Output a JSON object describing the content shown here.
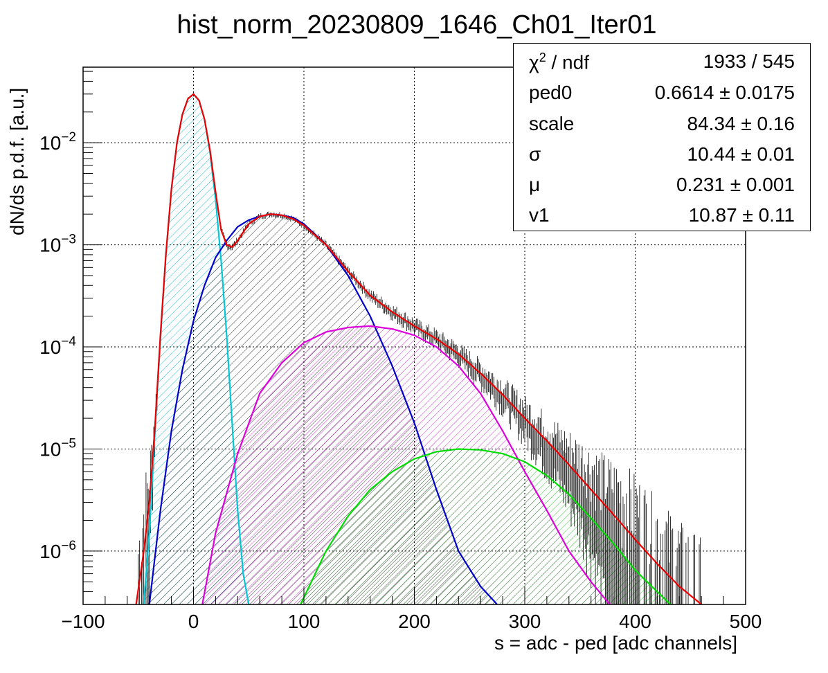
{
  "chart_data": {
    "type": "line",
    "title": "hist_norm_20230809_1646_Ch01_Iter01",
    "xlabel": "s = adc - ped [adc channels]",
    "ylabel": "dN/ds p.d.f. [a.u.]",
    "xlim": [
      -100,
      500
    ],
    "ylim": [
      3e-07,
      0.055
    ],
    "yscale": "log",
    "grid": true,
    "x_ticks": [
      "−100",
      "0",
      "100",
      "200",
      "300",
      "400",
      "500"
    ],
    "x_tick_values": [
      -100,
      0,
      100,
      200,
      300,
      400,
      500
    ],
    "y_ticks": [
      {
        "value": 0.01,
        "base": "10",
        "exp": "−2"
      },
      {
        "value": 0.001,
        "base": "10",
        "exp": "−3"
      },
      {
        "value": 0.0001,
        "base": "10",
        "exp": "−4"
      },
      {
        "value": 1e-05,
        "base": "10",
        "exp": "−5"
      },
      {
        "value": 1e-06,
        "base": "10",
        "exp": "−6"
      }
    ],
    "series": [
      {
        "color": "#00c8d8",
        "hatch": "cyan",
        "x": [
          -45,
          -40,
          -35,
          -30,
          -25,
          -20,
          -15,
          -10,
          -5,
          0,
          5,
          10,
          15,
          20,
          25,
          30,
          35,
          40,
          45,
          50
        ],
        "y": [
          3e-07,
          1.5e-06,
          1.4e-05,
          0.00012,
          0.0008,
          0.0035,
          0.01,
          0.019,
          0.027,
          0.03,
          0.026,
          0.017,
          0.008,
          0.0028,
          0.0007,
          0.00013,
          1.8e-05,
          2.5e-06,
          6e-07,
          3e-07
        ]
      },
      {
        "color": "#0000cc",
        "hatch": "black",
        "x": [
          -40,
          -30,
          -20,
          -10,
          0,
          10,
          20,
          30,
          40,
          50,
          60,
          70,
          80,
          90,
          100,
          120,
          140,
          160,
          180,
          200,
          220,
          240,
          260,
          275
        ],
        "y": [
          3e-07,
          2.5e-06,
          1.5e-05,
          6e-05,
          0.00018,
          0.0004,
          0.00075,
          0.0011,
          0.0015,
          0.00175,
          0.0019,
          0.002,
          0.00195,
          0.00185,
          0.0016,
          0.001,
          0.0005,
          0.0002,
          6.5e-05,
          1.8e-05,
          4e-06,
          1e-06,
          4.5e-07,
          3e-07
        ]
      },
      {
        "color": "#dd00dd",
        "hatch": "magenta",
        "x": [
          8,
          20,
          40,
          60,
          80,
          100,
          120,
          140,
          160,
          180,
          200,
          220,
          240,
          260,
          280,
          300,
          320,
          340,
          360,
          377
        ],
        "y": [
          3e-07,
          1.5e-06,
          9e-06,
          3.5e-05,
          7e-05,
          0.00011,
          0.00014,
          0.000155,
          0.00016,
          0.00015,
          0.00013,
          0.0001,
          6.5e-05,
          3.5e-05,
          1.5e-05,
          6e-06,
          2.5e-06,
          1e-06,
          5e-07,
          3e-07
        ]
      },
      {
        "color": "#00dd00",
        "hatch": "green",
        "x": [
          97,
          120,
          140,
          160,
          180,
          200,
          220,
          240,
          260,
          280,
          300,
          320,
          340,
          360,
          380,
          400,
          420,
          432
        ],
        "y": [
          3e-07,
          1e-06,
          2.2e-06,
          4e-06,
          6e-06,
          8e-06,
          9.4e-06,
          1e-05,
          9.8e-06,
          9e-06,
          7.5e-06,
          5.5e-06,
          3.6e-06,
          2.1e-06,
          1.2e-06,
          6.5e-07,
          4e-07,
          3e-07
        ]
      },
      {
        "color": "#ee0000",
        "x": [
          -52,
          -45,
          -40,
          -35,
          -30,
          -25,
          -20,
          -15,
          -10,
          -5,
          0,
          5,
          10,
          15,
          20,
          25,
          30,
          35,
          40,
          50,
          60,
          70,
          80,
          90,
          100,
          120,
          140,
          160,
          180,
          200,
          220,
          240,
          260,
          280,
          300,
          320,
          340,
          360,
          380,
          400,
          420,
          440,
          460
        ],
        "y": [
          3e-07,
          1e-06,
          3e-06,
          1.6e-05,
          0.00013,
          0.0008,
          0.0035,
          0.01,
          0.019,
          0.027,
          0.03,
          0.026,
          0.017,
          0.0084,
          0.0033,
          0.0014,
          0.001,
          0.00095,
          0.0011,
          0.0016,
          0.0019,
          0.002,
          0.00195,
          0.0018,
          0.00155,
          0.001,
          0.00055,
          0.00032,
          0.00022,
          0.00016,
          0.00012,
          8.5e-05,
          5.5e-05,
          3.4e-05,
          2e-05,
          1.2e-05,
          7e-06,
          4e-06,
          2.3e-06,
          1.3e-06,
          7.5e-07,
          4.5e-07,
          3e-07
        ]
      }
    ]
  },
  "stats": {
    "rows": [
      {
        "name": "χ",
        "sup": "2",
        "name_rest": " / ndf",
        "value": "1933 / 545"
      },
      {
        "name": "ped0",
        "value": "0.6614 ± 0.0175"
      },
      {
        "name": "scale",
        "value": "84.34 ± 0.16"
      },
      {
        "name": "σ",
        "value": "10.44 ± 0.01"
      },
      {
        "name": "μ",
        "value": "0.231 ± 0.001"
      },
      {
        "name": "v1",
        "value": "10.87 ± 0.11"
      }
    ]
  }
}
